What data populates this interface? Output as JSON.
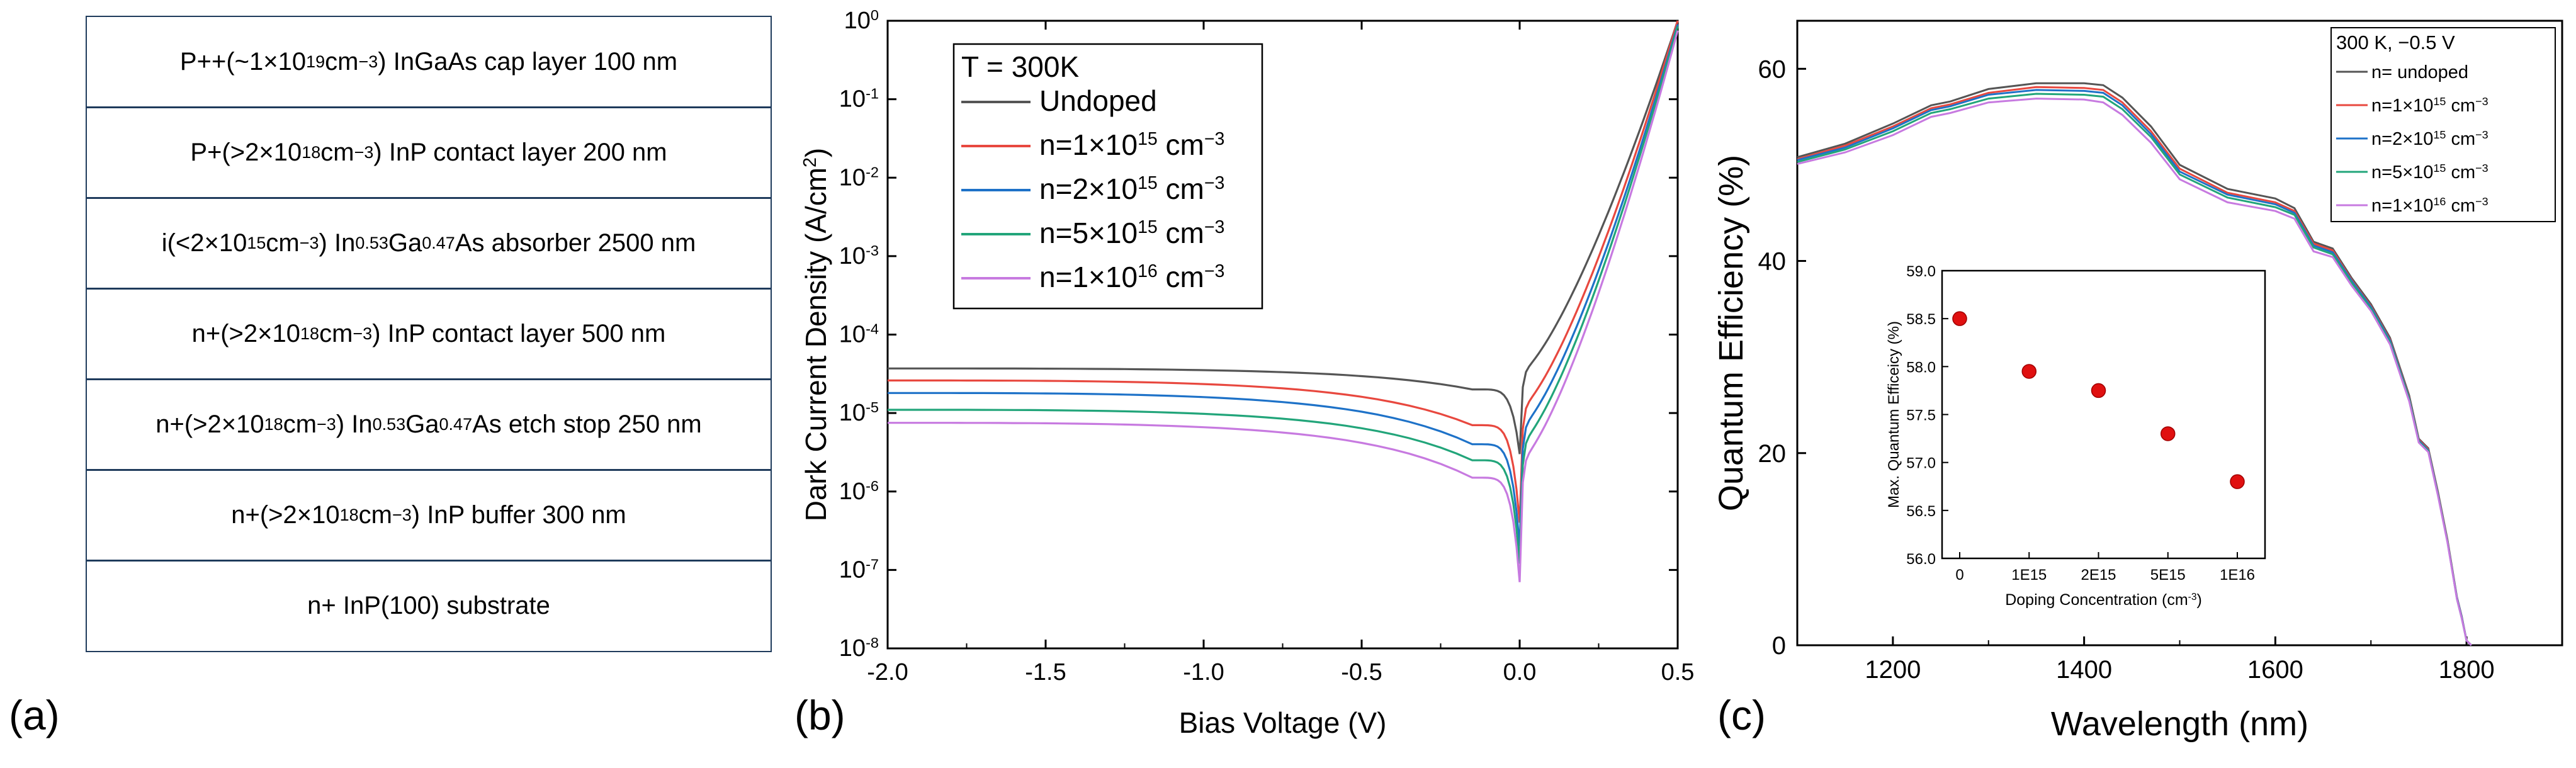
{
  "panel_labels": [
    "(a)",
    "(b)",
    "(c)"
  ],
  "layer_stack": {
    "layers": [
      {
        "pre": "P++(~1×10",
        "sup": "19",
        "mid": " cm",
        "sup2": "−3",
        "post": ") InGaAs cap layer 100 nm"
      },
      {
        "pre": "P+(>2×10",
        "sup": "18",
        "mid": " cm",
        "sup2": "−3",
        "post": ") InP contact layer 200 nm"
      },
      {
        "pre": "i(<2×10",
        "sup": "15",
        "mid": " cm",
        "sup2": "−3",
        "post": ") In",
        "sub1": "0.53",
        "mid2": "Ga",
        "sub2": "0.47",
        "post2": "As absorber 2500 nm"
      },
      {
        "pre": "n+(>2×10",
        "sup": "18",
        "mid": " cm",
        "sup2": "−3",
        "post": ") InP contact layer 500 nm"
      },
      {
        "pre": "n+(>2×10",
        "sup": "18",
        "mid": " cm",
        "sup2": "−3",
        "post": ") In",
        "sub1": "0.53",
        "mid2": "Ga",
        "sub2": "0.47",
        "post2": "As etch stop 250 nm"
      },
      {
        "pre": "n+(>2×10",
        "sup": "18",
        "mid": " cm",
        "sup2": "−3",
        "post": ") InP buffer 300 nm"
      },
      {
        "pre": "n+ InP(100) substrate"
      }
    ]
  },
  "chart_data": [
    {
      "type": "line",
      "title": "",
      "xlabel": "Bias Voltage (V)",
      "ylabel": "Dark Current Density (A/cm²)",
      "ylabel_pre": "Dark Current Density (A/cm",
      "ylabel_sup": "2",
      "ylabel_post": ")",
      "xlim": [
        -2.0,
        0.5
      ],
      "ylim_log10": [
        -8,
        0
      ],
      "yscale": "log",
      "xticks": [
        "-2.0",
        "-1.5",
        "-1.0",
        "-0.5",
        "0.0",
        "0.5"
      ],
      "xtick_values": [
        -2.0,
        -1.5,
        -1.0,
        -0.5,
        0.0,
        0.5
      ],
      "ytick_exponents": [
        "-8",
        "-7",
        "-6",
        "-5",
        "-4",
        "-3",
        "-2",
        "-1",
        "0"
      ],
      "ytick_values_log10": [
        -8,
        -7,
        -6,
        -5,
        -4,
        -3,
        -2,
        -1,
        0
      ],
      "ytick_base": "10",
      "legend_title": "T = 300K",
      "legend_position": "top-left",
      "series": [
        {
          "name": "Undoped",
          "color": "#555555",
          "reverse_J_at_minus2V": 3.7e-05,
          "reverse_J_at_minus0p05V": 2e-05,
          "min_J_at_0V": 3e-06,
          "J_at_0p5V": 1.0
        },
        {
          "name": "n=1×10^15 cm^-3",
          "label_pre": "n=1×10",
          "label_sup": "15",
          "label_mid": " cm",
          "label_sup2": "−3",
          "color": "#e8483f",
          "reverse_J_at_minus2V": 2.6e-05,
          "reverse_J_at_minus0p05V": 7e-06,
          "min_J_at_0V": 4e-07,
          "J_at_0p5V": 1.0
        },
        {
          "name": "n=2×10^15 cm^-3",
          "label_pre": "n=2×10",
          "label_sup": "15",
          "label_mid": " cm",
          "label_sup2": "−3",
          "color": "#1e72c8",
          "reverse_J_at_minus2V": 1.8e-05,
          "reverse_J_at_minus0p05V": 4e-06,
          "min_J_at_0V": 2e-07,
          "J_at_0p5V": 0.9
        },
        {
          "name": "n=5×10^15 cm^-3",
          "label_pre": "n=5×10",
          "label_sup": "15",
          "label_mid": " cm",
          "label_sup2": "−3",
          "color": "#22a57a",
          "reverse_J_at_minus2V": 1.1e-05,
          "reverse_J_at_minus0p05V": 2.5e-06,
          "min_J_at_0V": 1.2e-07,
          "J_at_0p5V": 0.85
        },
        {
          "name": "n=1×10^16 cm^-3",
          "label_pre": "n=1×10",
          "label_sup": "16",
          "label_mid": " cm",
          "label_sup2": "−3",
          "color": "#c77ae0",
          "reverse_J_at_minus2V": 7.5e-06,
          "reverse_J_at_minus0p05V": 1.5e-06,
          "min_J_at_0V": 7e-08,
          "J_at_0p5V": 0.75
        }
      ]
    },
    {
      "type": "line",
      "title": "",
      "xlabel": "Wavelength (nm)",
      "ylabel": "Quantum Efficiency (%)",
      "xlim": [
        1100,
        1900
      ],
      "ylim": [
        0,
        65
      ],
      "xticks": [
        "1200",
        "1400",
        "1600",
        "1800"
      ],
      "xtick_values": [
        1200,
        1400,
        1600,
        1800
      ],
      "yticks": [
        "0",
        "20",
        "40",
        "60"
      ],
      "ytick_values": [
        0,
        20,
        40,
        60
      ],
      "legend_title": "300 K, −0.5 V",
      "legend_position": "top-right",
      "x": [
        1100,
        1150,
        1200,
        1240,
        1260,
        1300,
        1350,
        1400,
        1420,
        1440,
        1470,
        1500,
        1550,
        1600,
        1620,
        1640,
        1660,
        1680,
        1700,
        1720,
        1740,
        1750,
        1760,
        1770,
        1780,
        1790,
        1795,
        1800,
        1805
      ],
      "series": [
        {
          "name": "n= undoped",
          "color": "#555555",
          "values": [
            50.8,
            52.2,
            54.3,
            56.2,
            56.6,
            57.9,
            58.5,
            58.5,
            58.3,
            57.0,
            54.0,
            50.0,
            47.5,
            46.5,
            45.5,
            42.0,
            41.3,
            38.2,
            35.5,
            32.0,
            26.0,
            21.5,
            20.5,
            16.0,
            11.0,
            5.0,
            3.0,
            0.5,
            0.0
          ]
        },
        {
          "name": "n=1×10^15 cm^-3",
          "label_pre": "n=1×10",
          "label_sup": "15",
          "label_mid": " cm",
          "label_sup2": "−3",
          "color": "#e8483f",
          "values": [
            50.6,
            52.0,
            54.0,
            55.9,
            56.3,
            57.5,
            58.1,
            58.0,
            57.8,
            56.5,
            53.5,
            49.6,
            47.1,
            46.1,
            45.2,
            41.8,
            41.1,
            38.0,
            35.3,
            31.8,
            25.8,
            21.4,
            20.4,
            15.9,
            10.9,
            4.9,
            2.9,
            0.5,
            0.0
          ]
        },
        {
          "name": "n=2×10^15 cm^-3",
          "label_pre": "n=2×10",
          "label_sup": "15",
          "label_mid": " cm",
          "label_sup2": "−3",
          "color": "#1e72c8",
          "values": [
            50.5,
            51.8,
            53.8,
            55.7,
            56.1,
            57.3,
            57.8,
            57.7,
            57.5,
            56.2,
            53.2,
            49.3,
            46.9,
            45.9,
            45.0,
            41.6,
            40.9,
            37.9,
            35.2,
            31.7,
            25.7,
            21.3,
            20.3,
            15.8,
            10.8,
            4.9,
            2.9,
            0.5,
            0.0
          ]
        },
        {
          "name": "n=5×10^15 cm^-3",
          "label_pre": "n=5×10",
          "label_sup": "15",
          "label_mid": " cm",
          "label_sup2": "−3",
          "color": "#22a57a",
          "values": [
            50.3,
            51.6,
            53.5,
            55.4,
            55.8,
            56.9,
            57.4,
            57.3,
            57.1,
            55.8,
            52.9,
            49.0,
            46.6,
            45.6,
            44.8,
            41.4,
            40.7,
            37.7,
            35.0,
            31.5,
            25.6,
            21.2,
            20.2,
            15.7,
            10.8,
            4.8,
            2.8,
            0.5,
            0.0
          ]
        },
        {
          "name": "n=1×10^16 cm^-3",
          "label_pre": "n=1×10",
          "label_sup": "16",
          "label_mid": " cm",
          "label_sup2": "−3",
          "color": "#c77ae0",
          "values": [
            50.1,
            51.3,
            53.1,
            55.0,
            55.4,
            56.5,
            56.9,
            56.8,
            56.5,
            55.2,
            52.3,
            48.5,
            46.1,
            45.2,
            44.4,
            41.0,
            40.4,
            37.4,
            34.8,
            31.3,
            25.4,
            21.1,
            20.1,
            15.6,
            10.7,
            4.8,
            2.8,
            0.5,
            0.0
          ]
        }
      ]
    },
    {
      "type": "scatter",
      "title": "",
      "xlabel": "Doping Concentration",
      "xlabel_unit_pre": "(cm",
      "xlabel_unit_sup": "-3",
      "xlabel_unit_post": ")",
      "ylabel": "Max. Quantum Efficeicy (%)",
      "categories": [
        "0",
        "1E15",
        "2E15",
        "5E15",
        "1E16"
      ],
      "values": [
        58.5,
        57.95,
        57.75,
        57.3,
        56.8
      ],
      "ylim": [
        56.0,
        59.0
      ],
      "yticks": [
        "56.0",
        "56.5",
        "57.0",
        "57.5",
        "58.0",
        "58.5",
        "59.0"
      ],
      "ytick_values": [
        56.0,
        56.5,
        57.0,
        57.5,
        58.0,
        58.5,
        59.0
      ],
      "marker_color": "#e01010"
    }
  ]
}
